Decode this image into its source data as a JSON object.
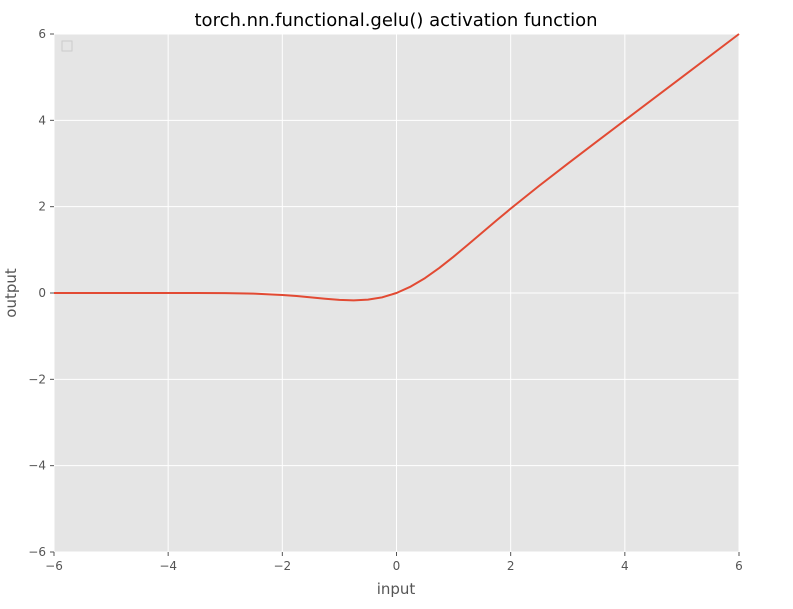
{
  "chart_data": {
    "type": "line",
    "title": "torch.nn.functional.gelu() activation function",
    "xlabel": "input",
    "ylabel": "output",
    "xlim": [
      -6,
      6
    ],
    "ylim": [
      -6,
      6
    ],
    "xticks": [
      "−6",
      "−4",
      "−2",
      "0",
      "2",
      "4",
      "6"
    ],
    "yticks": [
      "−6",
      "−4",
      "−2",
      "0",
      "2",
      "4",
      "6"
    ],
    "xtick_values": [
      -6,
      -4,
      -2,
      0,
      2,
      4,
      6
    ],
    "ytick_values": [
      -6,
      -4,
      -2,
      0,
      2,
      4,
      6
    ],
    "grid": true,
    "legend": "top-left",
    "colors": {
      "background": "#e5e5e5",
      "grid": "#ffffff",
      "line": "#e24a33"
    },
    "series": [
      {
        "x": [
          -6,
          -5,
          -4,
          -3.5,
          -3,
          -2.5,
          -2,
          -1.75,
          -1.5,
          -1.25,
          -1,
          -0.75,
          -0.5,
          -0.25,
          0,
          0.25,
          0.5,
          0.75,
          1,
          1.25,
          1.5,
          1.75,
          2,
          2.5,
          3,
          3.5,
          4,
          5,
          6
        ],
        "values": [
          0,
          0,
          -0.0001,
          -0.0008,
          -0.004,
          -0.0155,
          -0.0455,
          -0.0702,
          -0.1002,
          -0.132,
          -0.1587,
          -0.17,
          -0.1543,
          -0.1003,
          0,
          0.1497,
          0.3457,
          0.58,
          0.8413,
          1.118,
          1.3998,
          1.6798,
          1.9545,
          2.4845,
          2.996,
          3.4992,
          3.9999,
          5,
          6
        ]
      }
    ]
  }
}
